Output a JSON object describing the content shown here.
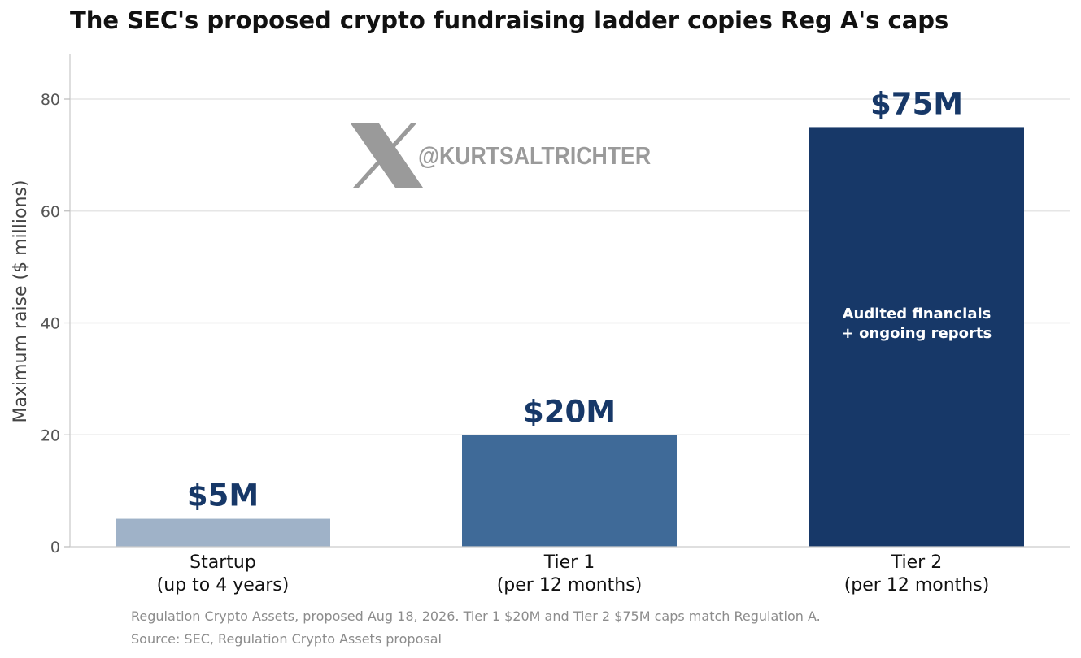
{
  "chart_data": {
    "type": "bar",
    "title": "The SEC's proposed crypto fundraising ladder copies Reg A's caps",
    "ylabel": "Maximum raise ($ millions)",
    "xlabel": "",
    "ylim": [
      0,
      88
    ],
    "yticks": [
      0,
      20,
      40,
      60,
      80
    ],
    "grid": true,
    "categories": [
      {
        "line1": "Startup",
        "line2": "(up to 4 years)"
      },
      {
        "line1": "Tier 1",
        "line2": "(per 12 months)"
      },
      {
        "line1": "Tier 2",
        "line2": "(per 12 months)"
      }
    ],
    "values": [
      5,
      20,
      75
    ],
    "value_labels": [
      "$5M",
      "$20M",
      "$75M"
    ],
    "bar_colors": [
      "#9fb2c8",
      "#3f6a98",
      "#173868"
    ],
    "value_label_color": "#173868",
    "inner_annotation": {
      "bar": 2,
      "lines": [
        "Audited financials",
        "+ ongoing reports"
      ],
      "color": "#ffffff"
    }
  },
  "watermark": {
    "icon": "x-logo-icon",
    "handle": "@KURTSALTRICHTER",
    "color": "#9a9a9a"
  },
  "footnotes": [
    "Regulation Crypto Assets, proposed Aug 18, 2026. Tier 1 $20M and Tier 2 $75M caps match Regulation A.",
    "Source: SEC, Regulation Crypto Assets proposal"
  ]
}
